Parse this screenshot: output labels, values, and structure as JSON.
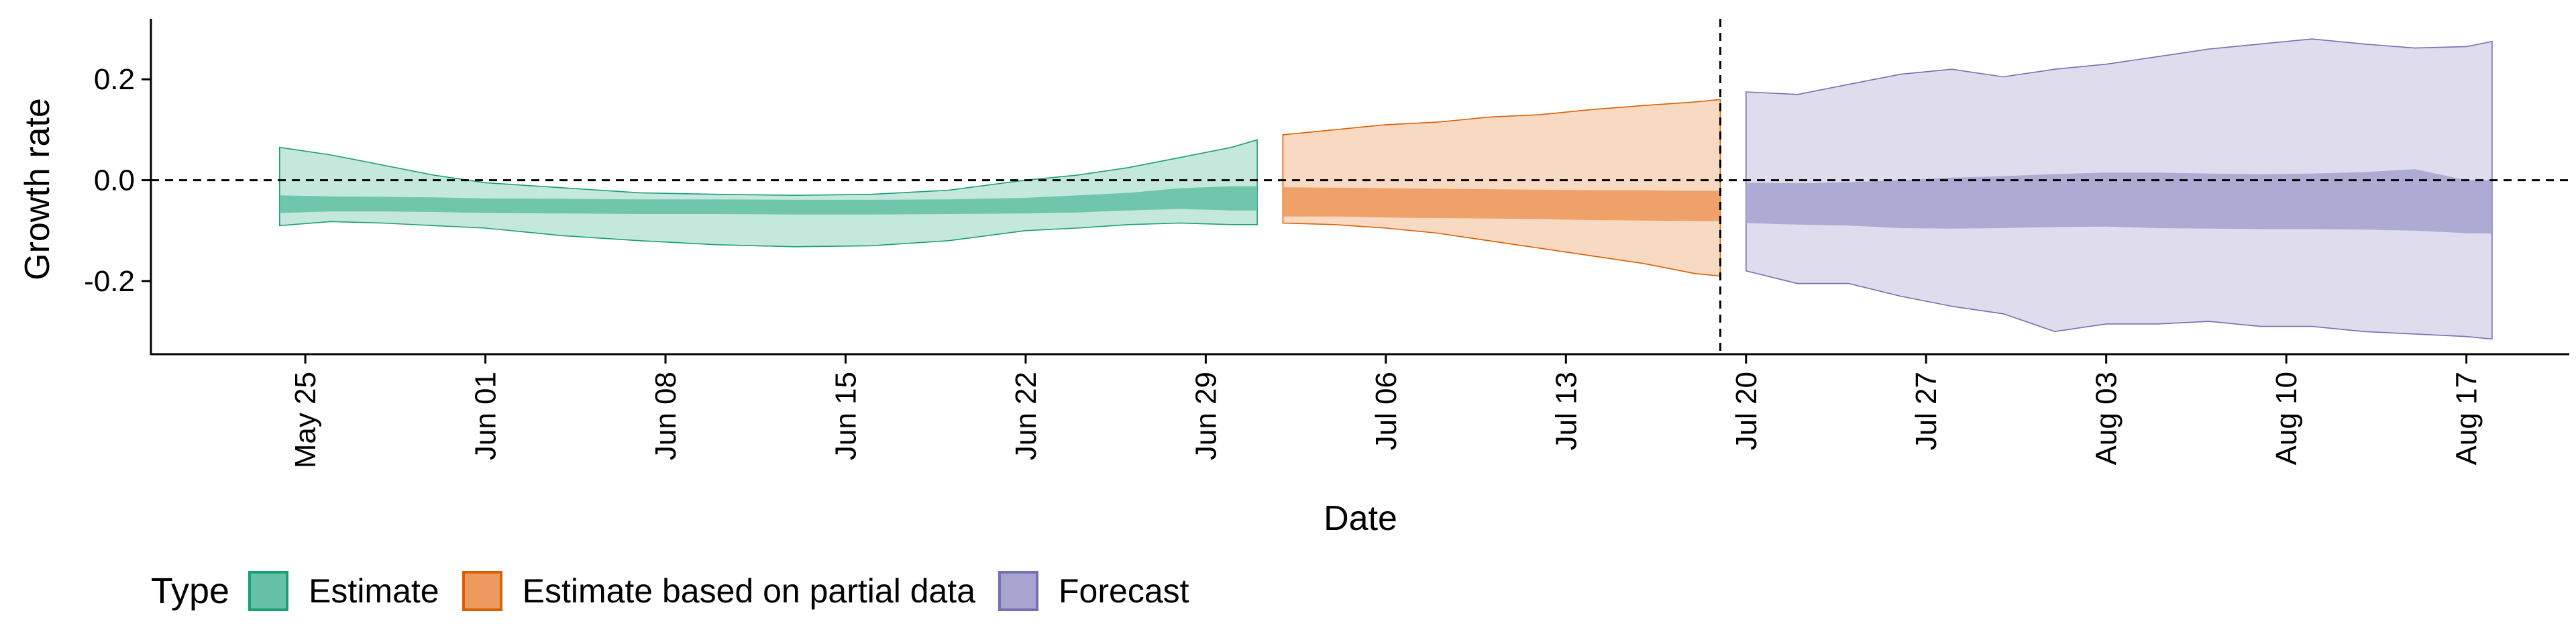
{
  "chart_data": {
    "type": "area",
    "xlabel": "Date",
    "ylabel": "Growth rate",
    "x_ticks": [
      "May 25",
      "Jun 01",
      "Jun 08",
      "Jun 15",
      "Jun 22",
      "Jun 29",
      "Jul 06",
      "Jul 13",
      "Jul 20",
      "Jul 27",
      "Aug 03",
      "Aug 10",
      "Aug 17"
    ],
    "y_ticks": [
      "0.2",
      "0.0",
      "-0.2"
    ],
    "y_tick_values": [
      0.2,
      0.0,
      -0.2
    ],
    "ylim": [
      -0.345,
      0.32
    ],
    "xlim": [
      "2020-05-19",
      "2020-08-21"
    ],
    "reference_lines": {
      "horizontal_y": 0.0,
      "vertical_x": "2020-07-19"
    },
    "legend": {
      "title": "Type",
      "position": "bottom-left"
    },
    "series": [
      {
        "name": "Estimate",
        "color": "#1b9e77",
        "fill": "#66c2a5",
        "x": [
          "2020-05-24",
          "2020-05-26",
          "2020-05-28",
          "2020-05-30",
          "2020-06-01",
          "2020-06-04",
          "2020-06-07",
          "2020-06-10",
          "2020-06-13",
          "2020-06-16",
          "2020-06-19",
          "2020-06-22",
          "2020-06-24",
          "2020-06-26",
          "2020-06-28",
          "2020-06-30",
          "2020-07-01"
        ],
        "lower_90": [
          -0.09,
          -0.082,
          -0.085,
          -0.09,
          -0.095,
          -0.11,
          -0.12,
          -0.128,
          -0.132,
          -0.13,
          -0.12,
          -0.1,
          -0.095,
          -0.088,
          -0.085,
          -0.088,
          -0.088
        ],
        "lower_50": [
          -0.065,
          -0.062,
          -0.062,
          -0.063,
          -0.065,
          -0.066,
          -0.067,
          -0.067,
          -0.068,
          -0.068,
          -0.067,
          -0.066,
          -0.064,
          -0.06,
          -0.057,
          -0.06,
          -0.06
        ],
        "upper_50": [
          -0.03,
          -0.032,
          -0.033,
          -0.034,
          -0.036,
          -0.037,
          -0.038,
          -0.038,
          -0.039,
          -0.039,
          -0.038,
          -0.035,
          -0.03,
          -0.025,
          -0.016,
          -0.012,
          -0.012
        ],
        "upper_90": [
          0.065,
          0.05,
          0.03,
          0.01,
          -0.005,
          -0.015,
          -0.025,
          -0.028,
          -0.03,
          -0.028,
          -0.02,
          0.0,
          0.01,
          0.025,
          0.045,
          0.065,
          0.08
        ]
      },
      {
        "name": "Estimate based on partial data",
        "color": "#d95f02",
        "fill": "#ec9a5e",
        "x": [
          "2020-07-02",
          "2020-07-04",
          "2020-07-06",
          "2020-07-08",
          "2020-07-10",
          "2020-07-12",
          "2020-07-14",
          "2020-07-16",
          "2020-07-18",
          "2020-07-19"
        ],
        "lower_90": [
          -0.085,
          -0.088,
          -0.095,
          -0.105,
          -0.12,
          -0.135,
          -0.15,
          -0.165,
          -0.185,
          -0.19
        ],
        "lower_50": [
          -0.072,
          -0.072,
          -0.074,
          -0.075,
          -0.076,
          -0.077,
          -0.079,
          -0.08,
          -0.081,
          -0.081
        ],
        "upper_50": [
          -0.014,
          -0.015,
          -0.016,
          -0.017,
          -0.018,
          -0.019,
          -0.02,
          -0.02,
          -0.021,
          -0.021
        ],
        "upper_90": [
          0.09,
          0.1,
          0.11,
          0.115,
          0.125,
          0.13,
          0.14,
          0.148,
          0.155,
          0.16
        ]
      },
      {
        "name": "Forecast",
        "color": "#7570b3",
        "fill": "#a7a4cf",
        "x": [
          "2020-07-20",
          "2020-07-22",
          "2020-07-24",
          "2020-07-26",
          "2020-07-28",
          "2020-07-30",
          "2020-08-01",
          "2020-08-03",
          "2020-08-05",
          "2020-08-07",
          "2020-08-09",
          "2020-08-11",
          "2020-08-13",
          "2020-08-15",
          "2020-08-17",
          "2020-08-18"
        ],
        "lower_90": [
          -0.18,
          -0.205,
          -0.205,
          -0.23,
          -0.25,
          -0.265,
          -0.3,
          -0.285,
          -0.285,
          -0.28,
          -0.29,
          -0.29,
          -0.3,
          -0.305,
          -0.31,
          -0.315
        ],
        "lower_50": [
          -0.085,
          -0.088,
          -0.09,
          -0.095,
          -0.096,
          -0.095,
          -0.093,
          -0.092,
          -0.095,
          -0.096,
          -0.097,
          -0.097,
          -0.098,
          -0.1,
          -0.105,
          -0.106
        ],
        "upper_50": [
          -0.005,
          -0.006,
          -0.004,
          0.0,
          0.005,
          0.008,
          0.012,
          0.015,
          0.015,
          0.013,
          0.012,
          0.013,
          0.016,
          0.022,
          0.0,
          0.0
        ],
        "upper_90": [
          0.175,
          0.17,
          0.19,
          0.21,
          0.22,
          0.205,
          0.22,
          0.23,
          0.245,
          0.26,
          0.27,
          0.28,
          0.27,
          0.262,
          0.265,
          0.275
        ]
      }
    ]
  }
}
